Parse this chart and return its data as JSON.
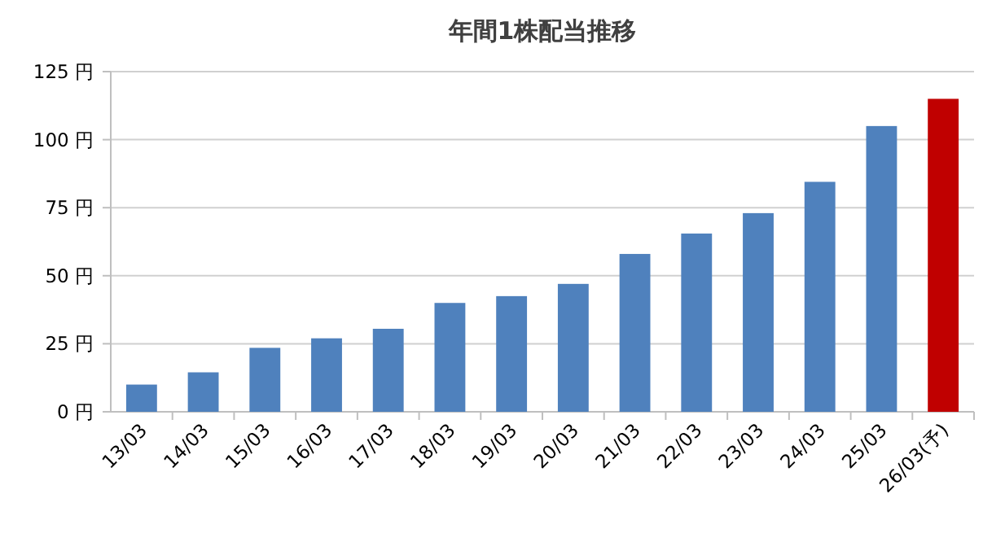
{
  "chart_data": {
    "type": "bar",
    "title": "年間1株配当推移",
    "categories": [
      "13/03",
      "14/03",
      "15/03",
      "16/03",
      "17/03",
      "18/03",
      "19/03",
      "20/03",
      "21/03",
      "22/03",
      "23/03",
      "24/03",
      "25/03",
      "26/03(予)"
    ],
    "values": [
      10,
      14.5,
      23.5,
      27,
      30.5,
      40,
      42.5,
      47,
      58,
      65.5,
      73,
      84.5,
      105,
      115
    ],
    "colors": [
      "#4f81bd",
      "#4f81bd",
      "#4f81bd",
      "#4f81bd",
      "#4f81bd",
      "#4f81bd",
      "#4f81bd",
      "#4f81bd",
      "#4f81bd",
      "#4f81bd",
      "#4f81bd",
      "#4f81bd",
      "#4f81bd",
      "#c00000"
    ],
    "ylim": [
      0,
      125
    ],
    "yticks": [
      {
        "value": 0,
        "label": "0 円"
      },
      {
        "value": 25,
        "label": "25 円"
      },
      {
        "value": 50,
        "label": "50 円"
      },
      {
        "value": 75,
        "label": "75 円"
      },
      {
        "value": 100,
        "label": "100 円"
      },
      {
        "value": 125,
        "label": "125 円"
      }
    ],
    "grid": "y"
  }
}
